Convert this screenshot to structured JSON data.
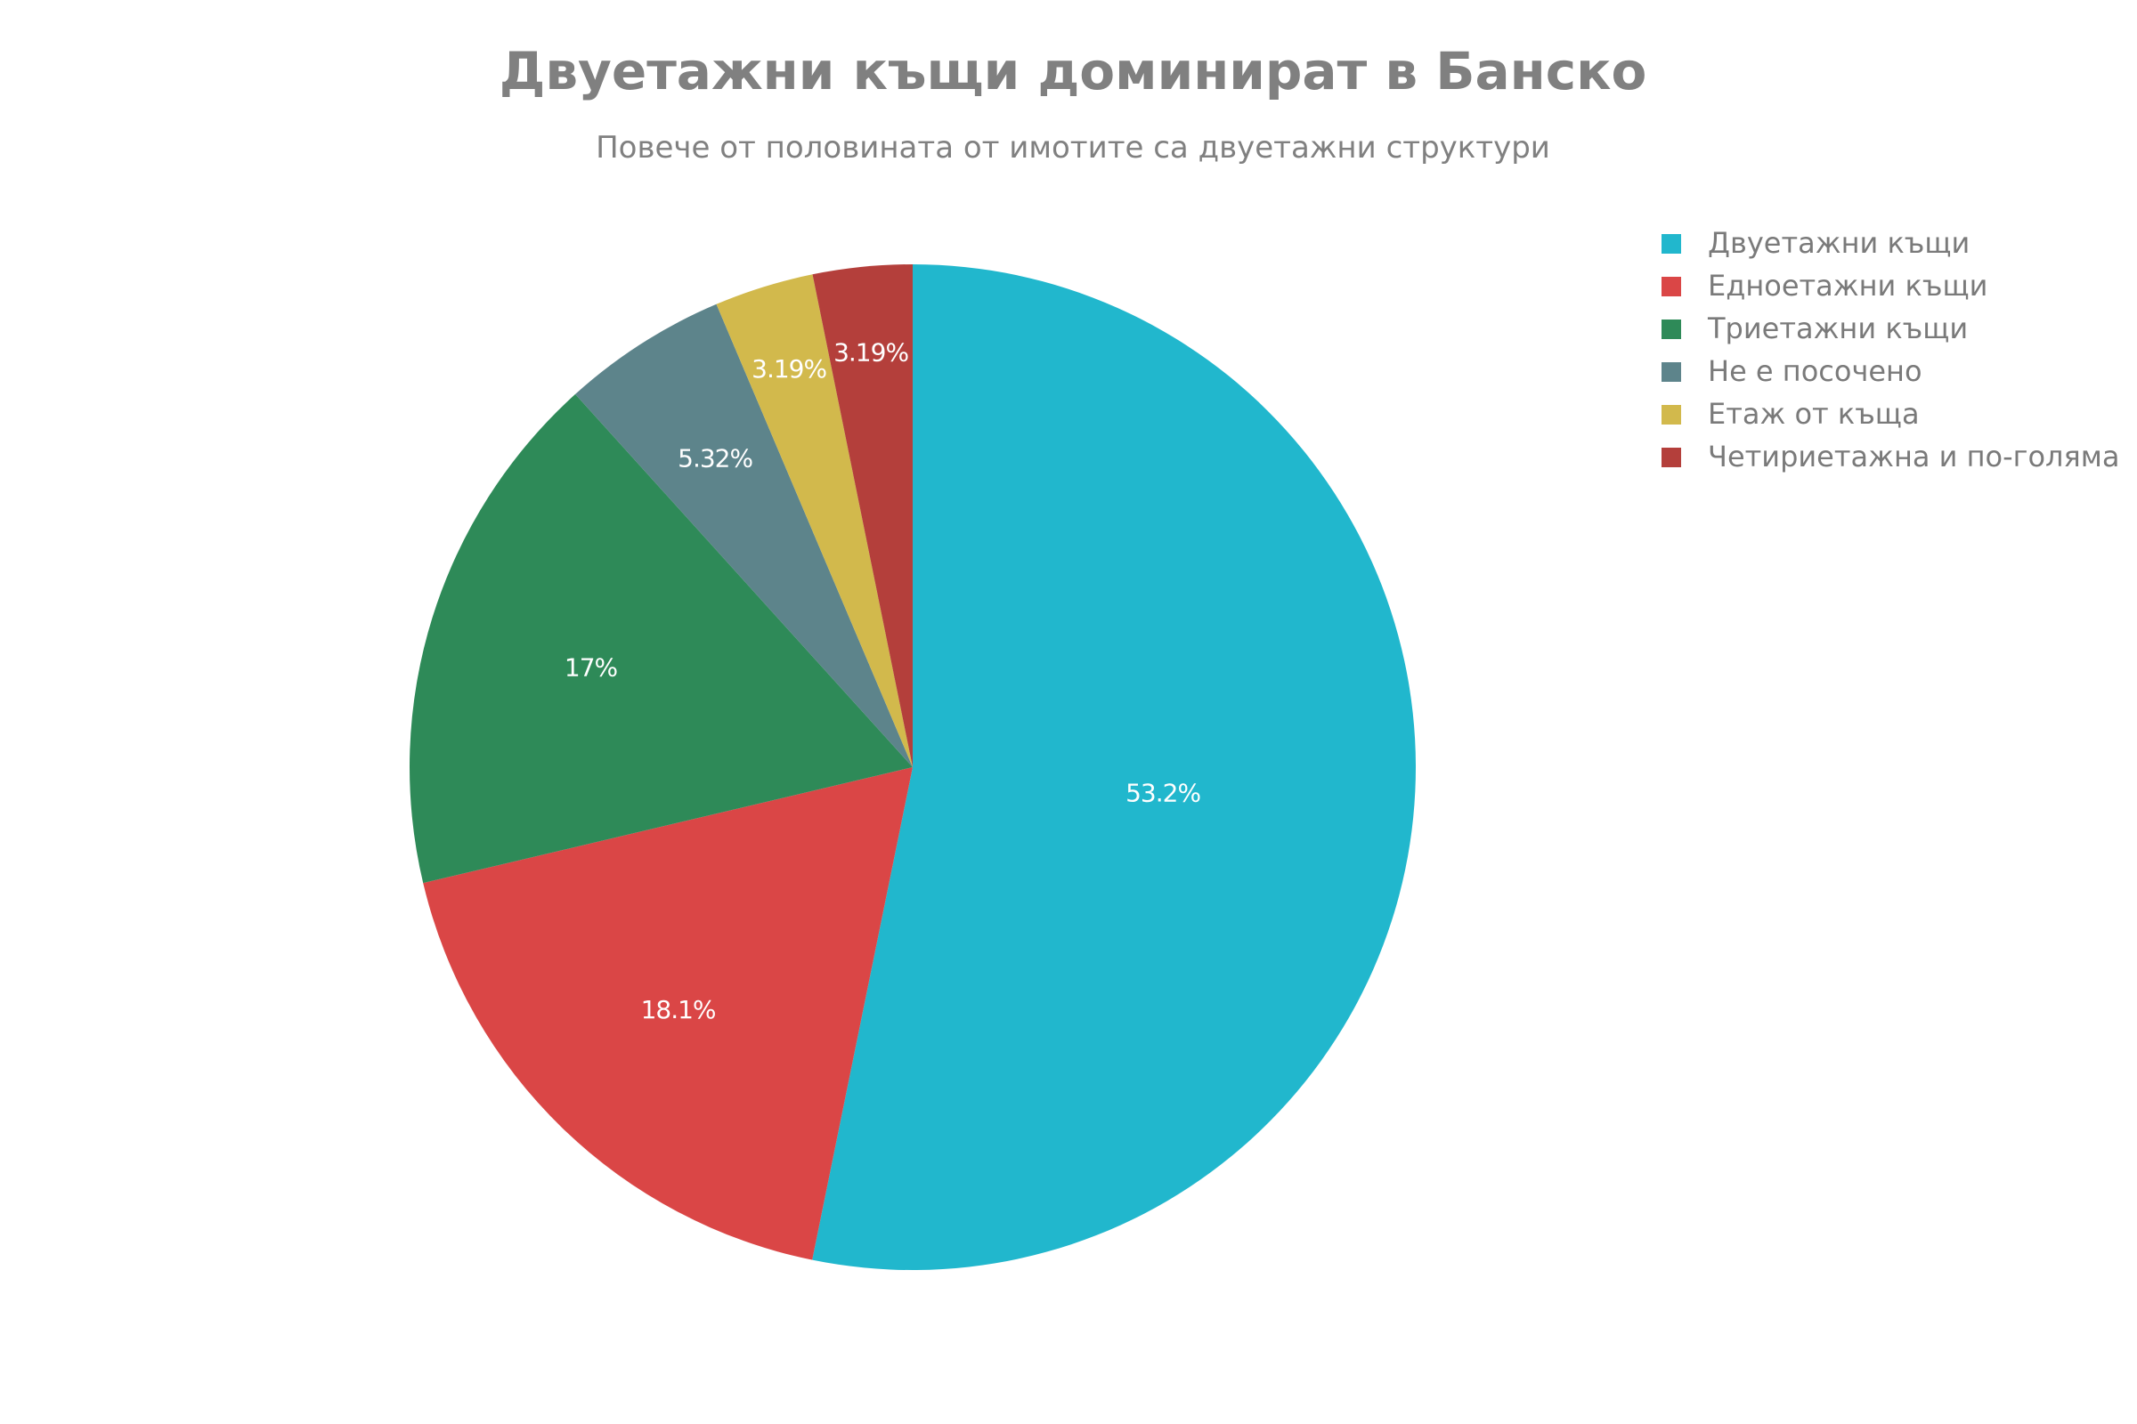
{
  "chart_data": {
    "type": "pie",
    "title": "Двуетажни къщи доминират в Банско",
    "subtitle": "Повече от половината от имотите са двуетажни структури",
    "legend_position": "top-right",
    "direction": "clockwise",
    "start": "top",
    "slices": [
      {
        "name": "Двуетажни къщи",
        "value": 53.2,
        "label": "53.2%",
        "color": "#21b7cd"
      },
      {
        "name": "Едноетажни къщи",
        "value": 18.1,
        "label": "18.1%",
        "color": "#da4646"
      },
      {
        "name": "Триетажни къщи",
        "value": 17.0,
        "label": "17%",
        "color": "#2e8a58"
      },
      {
        "name": "Не е посочено",
        "value": 5.32,
        "label": "5.32%",
        "color": "#5d848b"
      },
      {
        "name": "Етаж от къща",
        "value": 3.19,
        "label": "3.19%",
        "color": "#d2b94c"
      },
      {
        "name": "Четириетажна и по-голяма",
        "value": 3.19,
        "label": "3.19%",
        "color": "#b43f3b"
      }
    ]
  }
}
